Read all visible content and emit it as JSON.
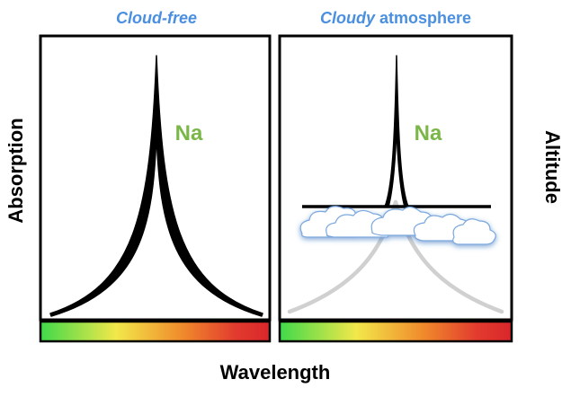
{
  "panels": {
    "left": {
      "title_italic": "Cloud-free",
      "species": "Na"
    },
    "right": {
      "title_italic": "Cloudy",
      "title_rest": " atmosphere",
      "species": "Na"
    }
  },
  "axes": {
    "y_left": "Absorption",
    "y_right": "Altitude",
    "x": "Wavelength"
  },
  "colors": {
    "title_blue": "#4a8fe0",
    "species_green": "#7ab648",
    "line": "#000000",
    "faded_line": "#cfcfcf",
    "gradient_stops": [
      "#3fd94a",
      "#f2e84a",
      "#f08a2c",
      "#e23b2e",
      "#d9262a"
    ]
  }
}
